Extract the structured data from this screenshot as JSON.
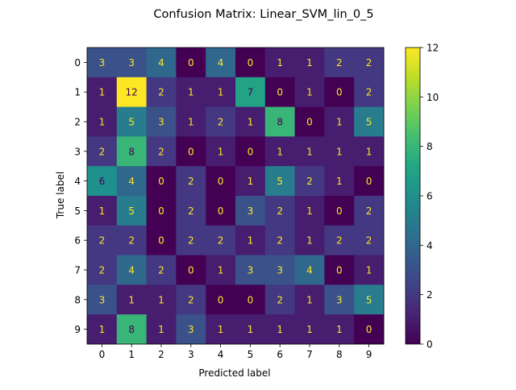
{
  "chart_data": {
    "type": "heatmap",
    "title": "Confusion Matrix: Linear_SVM_lin_0_5",
    "xlabel": "Predicted label",
    "ylabel": "True label",
    "x_categories": [
      "0",
      "1",
      "2",
      "3",
      "4",
      "5",
      "6",
      "7",
      "8",
      "9"
    ],
    "y_categories": [
      "0",
      "1",
      "2",
      "3",
      "4",
      "5",
      "6",
      "7",
      "8",
      "9"
    ],
    "values": [
      [
        3,
        3,
        4,
        0,
        4,
        0,
        1,
        1,
        2,
        2
      ],
      [
        1,
        12,
        2,
        1,
        1,
        7,
        0,
        1,
        0,
        2
      ],
      [
        1,
        5,
        3,
        1,
        2,
        1,
        8,
        0,
        1,
        5
      ],
      [
        2,
        8,
        2,
        0,
        1,
        0,
        1,
        1,
        1,
        1
      ],
      [
        6,
        4,
        0,
        2,
        0,
        1,
        5,
        2,
        1,
        0
      ],
      [
        1,
        5,
        0,
        2,
        0,
        3,
        2,
        1,
        0,
        2
      ],
      [
        2,
        2,
        0,
        2,
        2,
        1,
        2,
        1,
        2,
        2
      ],
      [
        2,
        4,
        2,
        0,
        1,
        3,
        3,
        4,
        0,
        1
      ],
      [
        3,
        1,
        1,
        2,
        0,
        0,
        2,
        1,
        3,
        5
      ],
      [
        1,
        8,
        1,
        3,
        1,
        1,
        1,
        1,
        1,
        0
      ]
    ],
    "colormap": "viridis",
    "vmin": 0,
    "vmax": 12,
    "colorbar_ticks": [
      "0",
      "2",
      "4",
      "6",
      "8",
      "10",
      "12"
    ],
    "text_color_light": "#fde725",
    "text_color_dark": "#440154"
  }
}
